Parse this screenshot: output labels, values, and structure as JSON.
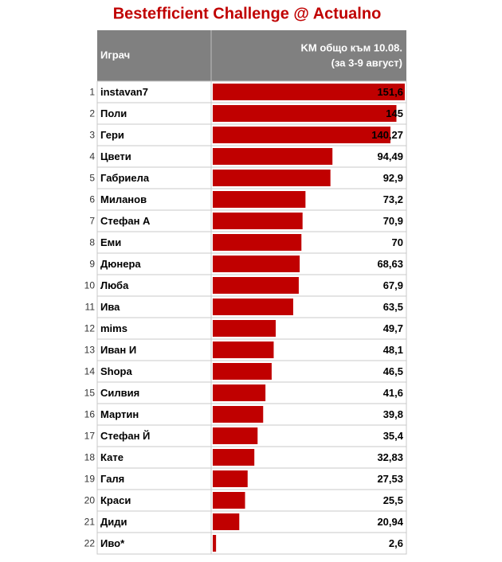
{
  "chart_data": {
    "type": "bar",
    "orientation": "horizontal",
    "title": "Bestefficient Challenge @ Actualno",
    "header": {
      "name": "Играч",
      "value_line1": "KM общо към 10.08.",
      "value_line2": "(за 3-9 август)"
    },
    "row_numbers": [
      1,
      2,
      3,
      4,
      5,
      6,
      7,
      8,
      9,
      10,
      11,
      12,
      13,
      14,
      15,
      16,
      17,
      18,
      19,
      20,
      21,
      22
    ],
    "categories": [
      "instavan7",
      "Поли",
      "Гери",
      "Цвети",
      "Габриела",
      "Миланов",
      "Стефан А",
      "Еми",
      "Дюнера",
      "Люба",
      "Ива",
      "mims",
      "Иван И",
      "Shopa",
      "Силвия",
      "Мартин",
      "Стефан Й",
      "Кате",
      "Галя",
      "Краси",
      "Диди",
      "Иво*"
    ],
    "values": [
      151.6,
      145,
      140.27,
      94.49,
      92.9,
      73.2,
      70.9,
      70,
      68.63,
      67.9,
      63.5,
      49.7,
      48.1,
      46.5,
      41.6,
      39.8,
      35.4,
      32.83,
      27.53,
      25.5,
      20.94,
      2.6
    ],
    "value_labels": [
      "151,6",
      "145",
      "140,27",
      "94,49",
      "92,9",
      "73,2",
      "70,9",
      "70",
      "68,63",
      "67,9",
      "63,5",
      "49,7",
      "48,1",
      "46,5",
      "41,6",
      "39,8",
      "35,4",
      "32,83",
      "27,53",
      "25,5",
      "20,94",
      "2,6"
    ],
    "color": "#c00000"
  }
}
